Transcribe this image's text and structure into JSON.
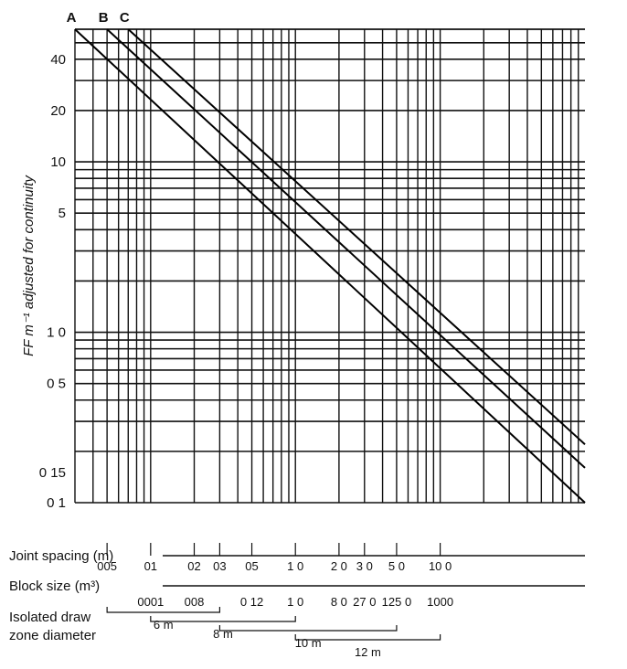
{
  "chart_data": {
    "type": "line",
    "title": "",
    "ylabel": "FF m⁻¹ adjusted for continuity",
    "y_scale": "log",
    "ylim": [
      0.1,
      60
    ],
    "x_scale": "log",
    "xlim": [
      0.03,
      100
    ],
    "grid": true,
    "y_ticks": [
      {
        "value": 40,
        "label": "40"
      },
      {
        "value": 20,
        "label": "20"
      },
      {
        "value": 10,
        "label": "10"
      },
      {
        "value": 5,
        "label": "5"
      },
      {
        "value": 1.0,
        "label": "1 0"
      },
      {
        "value": 0.5,
        "label": "0 5"
      },
      {
        "value": 0.15,
        "label": "0 15"
      },
      {
        "value": 0.1,
        "label": "0 1"
      }
    ],
    "series": [
      {
        "name": "A",
        "x": [
          0.03,
          100
        ],
        "y": [
          60,
          0.1
        ]
      },
      {
        "name": "B",
        "x": [
          0.05,
          100
        ],
        "y": [
          60,
          0.16
        ]
      },
      {
        "name": "C",
        "x": [
          0.07,
          100
        ],
        "y": [
          60,
          0.22
        ]
      }
    ],
    "scales": [
      {
        "label": "Joint spacing (m)",
        "ticks": [
          {
            "x": 0.05,
            "label": "005"
          },
          {
            "x": 0.1,
            "label": "01"
          },
          {
            "x": 0.2,
            "label": "02"
          },
          {
            "x": 0.3,
            "label": "03"
          },
          {
            "x": 0.5,
            "label": "05"
          },
          {
            "x": 1.0,
            "label": "1 0"
          },
          {
            "x": 2.0,
            "label": "2 0"
          },
          {
            "x": 3.0,
            "label": "3 0"
          },
          {
            "x": 5.0,
            "label": "5 0"
          },
          {
            "x": 10.0,
            "label": "10 0"
          }
        ]
      },
      {
        "label": "Block size (m³)",
        "ticks": [
          {
            "x": 0.1,
            "label": "0001"
          },
          {
            "x": 0.2,
            "label": "008"
          },
          {
            "x": 0.5,
            "label": "0 12"
          },
          {
            "x": 1.0,
            "label": "1 0"
          },
          {
            "x": 2.0,
            "label": "8 0"
          },
          {
            "x": 3.0,
            "label": "27 0"
          },
          {
            "x": 5.0,
            "label": "125 0"
          },
          {
            "x": 10.0,
            "label": "1000"
          }
        ]
      },
      {
        "label_line1": "Isolated draw",
        "label_line2": "zone diameter",
        "ranges": [
          {
            "from": 0.05,
            "to": 0.3,
            "label": "6 m"
          },
          {
            "from": 0.1,
            "to": 1.0,
            "label": "8 m"
          },
          {
            "from": 0.3,
            "to": 5.0,
            "label": "10 m"
          },
          {
            "from": 1.0,
            "to": 10.0,
            "label": "12 m"
          }
        ]
      }
    ]
  }
}
